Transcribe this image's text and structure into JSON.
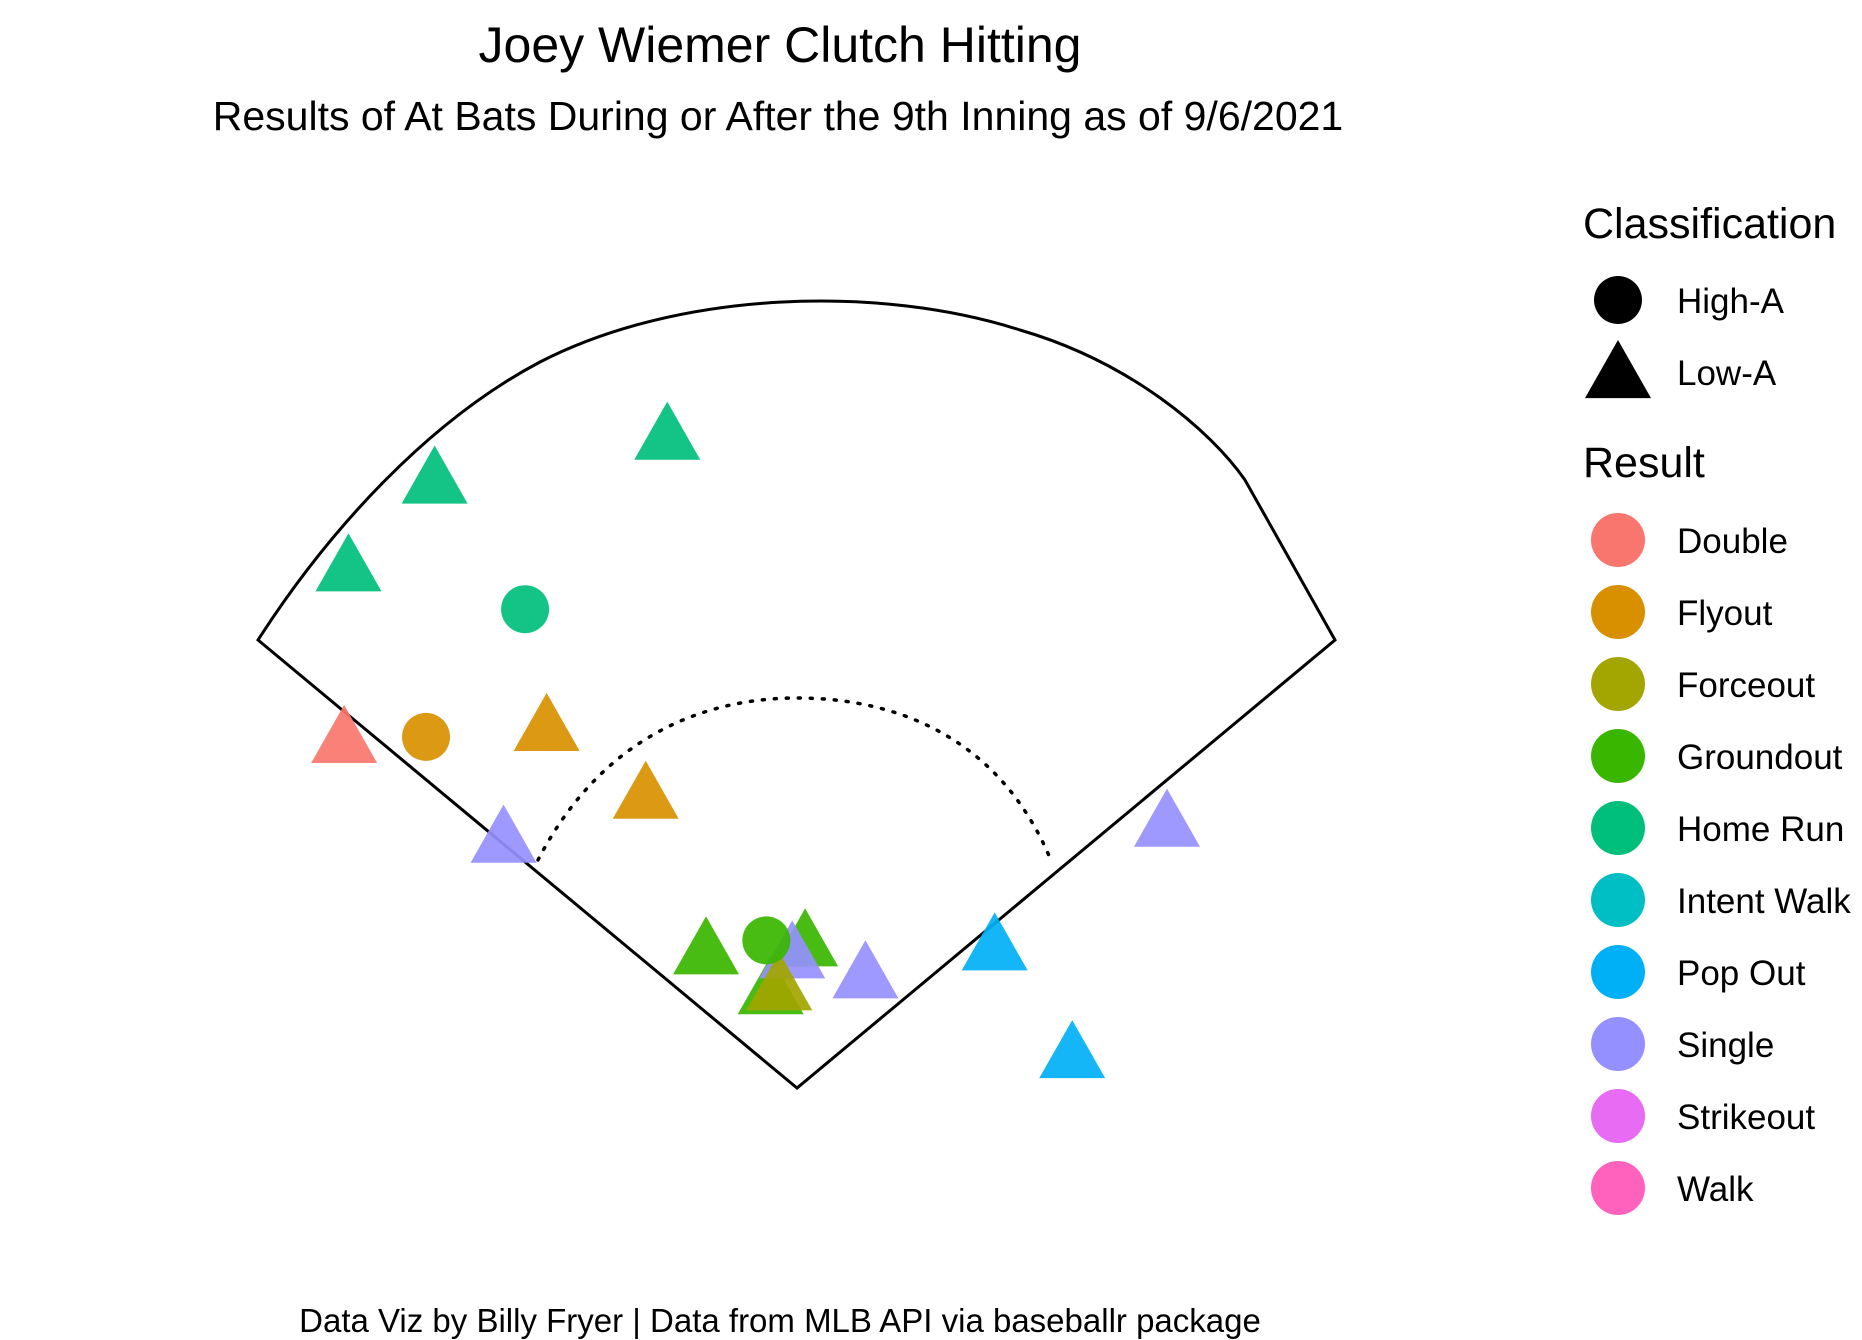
{
  "chart_data": {
    "type": "scatter",
    "title": "Joey Wiemer Clutch Hitting",
    "subtitle": "Results of At Bats During or After the 9th Inning as of 9/6/2021",
    "caption": "Data Viz by Billy Fryer | Data from MLB API via baseballr package",
    "xlabel": "",
    "ylabel": "",
    "xlim": [
      0,
      250
    ],
    "ylim": [
      -200,
      0
    ],
    "grid": false,
    "legend_position": "right",
    "legends": [
      {
        "title": "Classification",
        "entries": [
          {
            "label": "High-A",
            "shape": "circle"
          },
          {
            "label": "Low-A",
            "shape": "triangle"
          }
        ]
      },
      {
        "title": "Result",
        "entries": [
          {
            "label": "Double",
            "color": "#F8766D"
          },
          {
            "label": "Flyout",
            "color": "#D89000"
          },
          {
            "label": "Forceout",
            "color": "#A3A500"
          },
          {
            "label": "Groundout",
            "color": "#39B600"
          },
          {
            "label": "Home Run",
            "color": "#00BF7D"
          },
          {
            "label": "Intent Walk",
            "color": "#00BFC4"
          },
          {
            "label": "Pop Out",
            "color": "#00B0F6"
          },
          {
            "label": "Single",
            "color": "#9590FF"
          },
          {
            "label": "Strikeout",
            "color": "#E76BF3"
          },
          {
            "label": "Walk",
            "color": "#FF62BC"
          }
        ]
      }
    ],
    "points": [
      {
        "x": 95,
        "y": -37,
        "result": "Home Run",
        "classification": "Low-A"
      },
      {
        "x": 41,
        "y": -48,
        "result": "Home Run",
        "classification": "Low-A"
      },
      {
        "x": 62,
        "y": -80,
        "result": "Home Run",
        "classification": "High-A"
      },
      {
        "x": 21,
        "y": -70,
        "result": "Home Run",
        "classification": "Low-A"
      },
      {
        "x": 20,
        "y": -113,
        "result": "Double",
        "classification": "Low-A"
      },
      {
        "x": 39,
        "y": -112,
        "result": "Flyout",
        "classification": "High-A"
      },
      {
        "x": 67,
        "y": -110,
        "result": "Flyout",
        "classification": "Low-A"
      },
      {
        "x": 90,
        "y": -127,
        "result": "Flyout",
        "classification": "Low-A"
      },
      {
        "x": 57,
        "y": -138,
        "result": "Single",
        "classification": "Low-A"
      },
      {
        "x": 211,
        "y": -134,
        "result": "Single",
        "classification": "Low-A"
      },
      {
        "x": 104,
        "y": -166,
        "result": "Groundout",
        "classification": "Low-A"
      },
      {
        "x": 127,
        "y": -164,
        "result": "Groundout",
        "classification": "Low-A"
      },
      {
        "x": 119,
        "y": -176,
        "result": "Groundout",
        "classification": "Low-A"
      },
      {
        "x": 124,
        "y": -167,
        "result": "Single",
        "classification": "Low-A"
      },
      {
        "x": 141,
        "y": -172,
        "result": "Single",
        "classification": "Low-A"
      },
      {
        "x": 121,
        "y": -175,
        "result": "Forceout",
        "classification": "Low-A"
      },
      {
        "x": 118,
        "y": -163,
        "result": "Groundout",
        "classification": "High-A"
      },
      {
        "x": 171,
        "y": -165,
        "result": "Pop Out",
        "classification": "Low-A"
      },
      {
        "x": 189,
        "y": -192,
        "result": "Pop Out",
        "classification": "Low-A"
      }
    ]
  }
}
